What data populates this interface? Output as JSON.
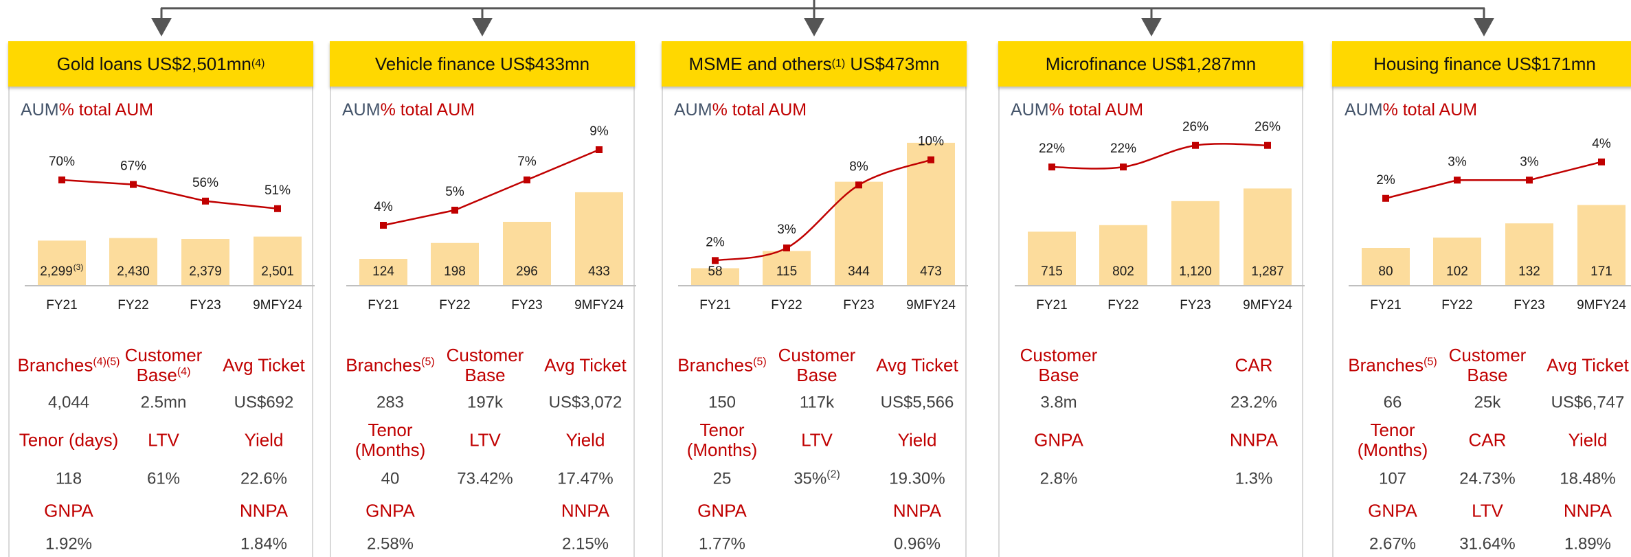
{
  "chart_data": [
    {
      "type": "bar",
      "title_parts": [
        "Gold loans US$2,501mn",
        "(4)"
      ],
      "categories": [
        "FY21",
        "FY22",
        "FY23",
        "9MFY24"
      ],
      "ylim": [
        0,
        7700
      ],
      "y2lim": [
        0,
        100
      ],
      "series": [
        {
          "name": "AUM",
          "color": "#fcdc9c",
          "values": [
            2299,
            2430,
            2379,
            2501
          ],
          "value_labels": [
            "2,299",
            "2,430",
            "2,379",
            "2,501"
          ],
          "value_label_notes": [
            "(3)",
            null,
            null,
            null
          ]
        },
        {
          "name": "% total AUM",
          "type": "line",
          "axis": "y2",
          "color": "#c00000",
          "values": [
            70,
            67,
            56,
            51
          ],
          "value_labels": [
            "70%",
            "67%",
            "56%",
            "51%"
          ]
        }
      ]
    },
    {
      "type": "bar",
      "title_parts": [
        "Vehicle finance US$433mn"
      ],
      "categories": [
        "FY21",
        "FY22",
        "FY23",
        "9MFY24"
      ],
      "ylim": [
        0,
        700
      ],
      "y2lim": [
        0,
        10
      ],
      "series": [
        {
          "name": "AUM",
          "color": "#fcdc9c",
          "values": [
            124,
            198,
            296,
            433
          ]
        },
        {
          "name": "% total AUM",
          "type": "line",
          "axis": "y2",
          "color": "#c00000",
          "values": [
            4,
            5,
            7,
            9
          ],
          "value_labels": [
            "4%",
            "5%",
            "7%",
            "9%"
          ]
        }
      ]
    },
    {
      "type": "bar",
      "title_parts": [
        "MSME and others",
        "(1)",
        " US$473mn"
      ],
      "categories": [
        "FY21",
        "FY22",
        "FY23",
        "9MFY24"
      ],
      "ylim": [
        0,
        500
      ],
      "y2lim": [
        0,
        12
      ],
      "series": [
        {
          "name": "AUM",
          "color": "#fcdc9c",
          "values": [
            58,
            115,
            344,
            473
          ]
        },
        {
          "name": "% total AUM",
          "type": "line",
          "axis": "y2",
          "smooth": true,
          "color": "#c00000",
          "values": [
            2,
            3,
            8,
            10
          ],
          "value_labels": [
            "2%",
            "3%",
            "8%",
            "10%"
          ]
        }
      ]
    },
    {
      "type": "bar",
      "title_parts": [
        "Microfinance US$1,287mn"
      ],
      "categories": [
        "FY21",
        "FY22",
        "FY23",
        "9MFY24"
      ],
      "ylim": [
        0,
        2000
      ],
      "y2lim": [
        0,
        28
      ],
      "series": [
        {
          "name": "AUM",
          "color": "#fcdc9c",
          "values": [
            715,
            802,
            1120,
            1287
          ],
          "value_labels": [
            "715",
            "802",
            "1,120",
            "1,287"
          ]
        },
        {
          "name": "% total AUM",
          "type": "line",
          "axis": "y2",
          "smooth": true,
          "color": "#c00000",
          "values": [
            22,
            22,
            26,
            26
          ],
          "value_labels": [
            "22%",
            "22%",
            "26%",
            "26%"
          ]
        }
      ]
    },
    {
      "type": "bar",
      "title_parts": [
        "Housing finance US$171mn"
      ],
      "categories": [
        "FY21",
        "FY22",
        "FY23",
        "9MFY24"
      ],
      "ylim": [
        0,
        320
      ],
      "y2lim": [
        -2.8,
        5.5
      ],
      "series": [
        {
          "name": "AUM",
          "color": "#fcdc9c",
          "values": [
            80,
            102,
            132,
            171
          ]
        },
        {
          "name": "% total AUM",
          "type": "line",
          "axis": "y2",
          "color": "#c00000",
          "values": [
            2,
            3,
            3,
            4
          ],
          "value_labels": [
            "2%",
            "3%",
            "3%",
            "4%"
          ]
        }
      ]
    }
  ],
  "metrics": [
    [
      [
        {
          "text": "Branches",
          "note": "(4)(5)"
        },
        {
          "text": "Customer Base",
          "note": "(4)"
        },
        "Avg Ticket"
      ],
      [
        "4,044",
        "2.5mn",
        "US$692"
      ],
      [
        "Tenor (days)",
        "LTV",
        "Yield"
      ],
      [
        "118",
        "61%",
        "22.6%"
      ],
      [
        "GNPA",
        null,
        "NNPA"
      ],
      [
        "1.92%",
        null,
        "1.84%"
      ]
    ],
    [
      [
        {
          "text": "Branches",
          "note": "(5)"
        },
        "Customer Base",
        "Avg Ticket"
      ],
      [
        "283",
        "197k",
        "US$3,072"
      ],
      [
        "Tenor (Months)",
        "LTV",
        "Yield"
      ],
      [
        "40",
        "73.42%",
        "17.47%"
      ],
      [
        "GNPA",
        null,
        "NNPA"
      ],
      [
        "2.58%",
        null,
        "2.15%"
      ]
    ],
    [
      [
        {
          "text": "Branches",
          "note": "(5)"
        },
        "Customer Base",
        "Avg Ticket"
      ],
      [
        "150",
        "117k",
        "US$5,566"
      ],
      [
        "Tenor (Months)",
        "LTV",
        "Yield"
      ],
      [
        "25",
        {
          "text": "35%",
          "note": "(2)"
        },
        "19.30%"
      ],
      [
        "GNPA",
        null,
        "NNPA"
      ],
      [
        "1.77%",
        null,
        "0.96%"
      ]
    ],
    [
      [
        "Customer Base",
        null,
        "CAR"
      ],
      [
        "3.8m",
        null,
        "23.2%"
      ],
      [
        "GNPA",
        null,
        "NNPA"
      ],
      [
        "2.8%",
        null,
        "1.3%"
      ]
    ],
    [
      [
        {
          "text": "Branches",
          "note": "(5)"
        },
        "Customer Base",
        "Avg Ticket"
      ],
      [
        "66",
        "25k",
        "US$6,747"
      ],
      [
        "Tenor (Months)",
        "CAR",
        "Yield"
      ],
      [
        "107",
        "24.73%",
        "18.48%"
      ],
      [
        "GNPA",
        "LTV",
        "NNPA"
      ],
      [
        "2.67%",
        "31.64%",
        "1.89%"
      ]
    ]
  ]
}
